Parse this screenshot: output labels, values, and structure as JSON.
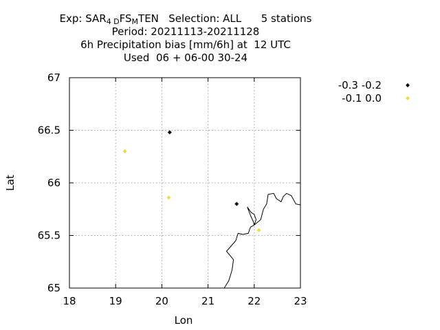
{
  "title": {
    "exp_prefix": "Exp: SAR",
    "exp_sub1": "4 D",
    "exp_mid": "FS",
    "exp_sub2": "M",
    "exp_suffix": "TEN   Selection: ALL      5 stations",
    "line2": "Period: 20211113-20211128",
    "line3": "6h Precipitation bias [mm/6h] at  12 UTC",
    "line4": "Used  06 + 06-00 30-24"
  },
  "chart_data": {
    "type": "scatter",
    "xlabel": "Lon",
    "ylabel": "Lat",
    "xlim": [
      18,
      23
    ],
    "ylim": [
      65,
      67
    ],
    "xticks": [
      18,
      19,
      20,
      21,
      22,
      23
    ],
    "yticks": [
      65,
      65.5,
      66,
      66.5,
      67
    ],
    "xtick_labels": [
      "18",
      "19",
      "20",
      "21",
      "22",
      "23"
    ],
    "ytick_labels": [
      "65",
      "65.5",
      "66",
      "66.5",
      "67"
    ],
    "grid": true,
    "legend_position": "outside-right",
    "series": [
      {
        "name": "-0.3 -0.2",
        "color": "#000000",
        "points": [
          [
            20.17,
            66.48
          ],
          [
            21.62,
            65.8
          ]
        ]
      },
      {
        "name": "-0.1 0.0",
        "color": "#f0dc3c",
        "points": [
          [
            19.2,
            66.3
          ],
          [
            20.15,
            65.86
          ],
          [
            22.1,
            65.55
          ]
        ]
      }
    ],
    "coastline": [
      [
        [
          21.35,
          65.0
        ],
        [
          21.45,
          65.07
        ],
        [
          21.52,
          65.17
        ],
        [
          21.55,
          65.27
        ],
        [
          21.4,
          65.35
        ],
        [
          21.6,
          65.45
        ],
        [
          21.65,
          65.52
        ],
        [
          21.75,
          65.51
        ],
        [
          21.87,
          65.52
        ],
        [
          21.92,
          65.58
        ],
        [
          22.0,
          65.6
        ],
        [
          22.04,
          65.65
        ],
        [
          22.0,
          65.7
        ],
        [
          21.93,
          65.72
        ],
        [
          21.85,
          65.77
        ],
        [
          21.93,
          65.68
        ],
        [
          21.98,
          65.63
        ],
        [
          22.0,
          65.6
        ],
        [
          22.14,
          65.65
        ],
        [
          22.2,
          65.75
        ],
        [
          22.27,
          65.8
        ],
        [
          22.3,
          65.89
        ],
        [
          22.42,
          65.9
        ],
        [
          22.48,
          65.85
        ],
        [
          22.58,
          65.82
        ],
        [
          22.63,
          65.87
        ],
        [
          22.7,
          65.9
        ],
        [
          22.8,
          65.88
        ],
        [
          22.9,
          65.8
        ],
        [
          23.0,
          65.79
        ]
      ]
    ]
  }
}
